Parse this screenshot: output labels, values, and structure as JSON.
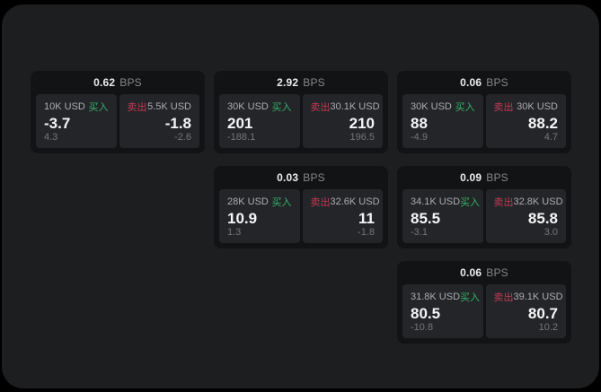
{
  "labels": {
    "buy": "买入",
    "sell": "卖出",
    "bps": "BPS"
  },
  "colors": {
    "page_bg": "#000000",
    "surface_bg": "#1d1e1f",
    "card_bg": "#121314",
    "tile_bg": "#242528",
    "buy_green": "#35b26a",
    "sell_red": "#c23a55"
  },
  "cards": [
    {
      "bps": "0.62",
      "col": 1,
      "row": 1,
      "buy": {
        "size": "10K USD",
        "value": "-3.7",
        "sub": "4.3"
      },
      "sell": {
        "size": "5.5K USD",
        "value": "-1.8",
        "sub": "-2.6"
      }
    },
    {
      "bps": "2.92",
      "col": 2,
      "row": 1,
      "buy": {
        "size": "30K USD",
        "value": "201",
        "sub": "-188.1"
      },
      "sell": {
        "size": "30.1K USD",
        "value": "210",
        "sub": "196.5"
      }
    },
    {
      "bps": "0.06",
      "col": 3,
      "row": 1,
      "buy": {
        "size": "30K USD",
        "value": "88",
        "sub": "-4.9"
      },
      "sell": {
        "size": "30K USD",
        "value": "88.2",
        "sub": "4.7"
      }
    },
    {
      "bps": "0.03",
      "col": 2,
      "row": 2,
      "buy": {
        "size": "28K USD",
        "value": "10.9",
        "sub": "1.3"
      },
      "sell": {
        "size": "32.6K USD",
        "value": "11",
        "sub": "-1.8"
      }
    },
    {
      "bps": "0.09",
      "col": 3,
      "row": 2,
      "buy": {
        "size": "34.1K USD",
        "value": "85.5",
        "sub": "-3.1"
      },
      "sell": {
        "size": "32.8K USD",
        "value": "85.8",
        "sub": "3.0"
      }
    },
    {
      "bps": "0.06",
      "col": 3,
      "row": 3,
      "buy": {
        "size": "31.8K USD",
        "value": "80.5",
        "sub": "-10.8"
      },
      "sell": {
        "size": "39.1K USD",
        "value": "80.7",
        "sub": "10.2"
      }
    }
  ]
}
